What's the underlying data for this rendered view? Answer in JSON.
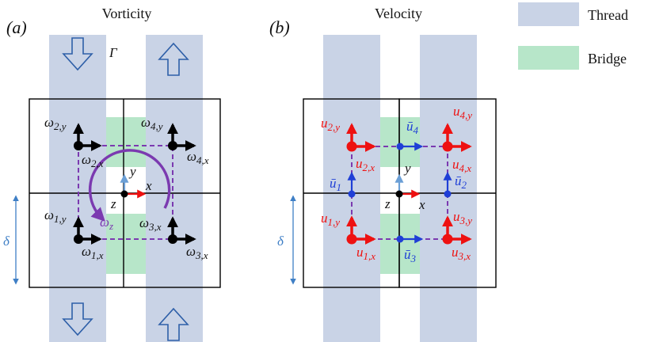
{
  "colors": {
    "thread": "#c9d3e6",
    "bridge": "#b7e6c9",
    "grid": "#000000",
    "vec_black": "#000000",
    "vec_red": "#ee1111",
    "vec_blue": "#1f3fd6",
    "purple": "#7b3ab0",
    "delta_arrow": "#3f7fc6",
    "axis_y": "#6b9fd6",
    "hollow_arrow": "#2e5fa8"
  },
  "titles": {
    "a": "Vorticity",
    "b": "Velocity"
  },
  "panel_labels": {
    "a": "(a)",
    "b": "(b)"
  },
  "legend": {
    "thread": "Thread",
    "bridge": "Bridge"
  },
  "panel_a": {
    "gamma": "Γ",
    "delta": "δ",
    "axes": {
      "x": "x",
      "y": "y",
      "z": "z"
    },
    "omega_z": {
      "base": "ω",
      "sub": "z"
    },
    "labels": [
      {
        "base": "ω",
        "sub": "2,y"
      },
      {
        "base": "ω",
        "sub": "2,x"
      },
      {
        "base": "ω",
        "sub": "4,y"
      },
      {
        "base": "ω",
        "sub": "4,x"
      },
      {
        "base": "ω",
        "sub": "1,y"
      },
      {
        "base": "ω",
        "sub": "1,x"
      },
      {
        "base": "ω",
        "sub": "3,x"
      },
      {
        "base": "ω",
        "sub": "3,x"
      }
    ]
  },
  "panel_b": {
    "delta": "δ",
    "axes": {
      "x": "x",
      "y": "y",
      "z": "z"
    },
    "red_labels": [
      {
        "base": "u",
        "sub": "2,y"
      },
      {
        "base": "u",
        "sub": "2,x"
      },
      {
        "base": "u",
        "sub": "4,y"
      },
      {
        "base": "u",
        "sub": "4,x"
      },
      {
        "base": "u",
        "sub": "1,y"
      },
      {
        "base": "u",
        "sub": "1,x"
      },
      {
        "base": "u",
        "sub": "3,y"
      },
      {
        "base": "u",
        "sub": "3,x"
      }
    ],
    "blue_labels": [
      {
        "base": "ū",
        "sub": "4"
      },
      {
        "base": "ū",
        "sub": "1"
      },
      {
        "base": "ū",
        "sub": "2"
      },
      {
        "base": "ū",
        "sub": "3"
      }
    ]
  }
}
